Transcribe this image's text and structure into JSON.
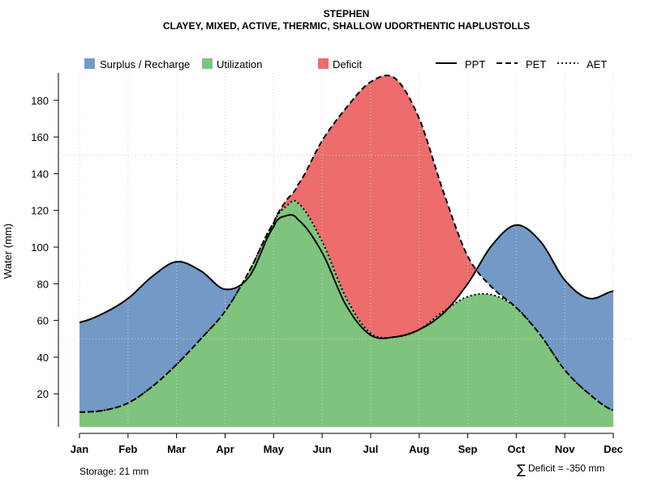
{
  "chart_data": {
    "type": "area",
    "title": "STEPHEN",
    "subtitle": "CLAYEY, MIXED, ACTIVE, THERMIC, SHALLOW UDORTHENTIC HAPLUSTOLLS",
    "xlabel": "",
    "ylabel": "Water (mm)",
    "categories": [
      "Jan",
      "Feb",
      "Mar",
      "Apr",
      "May",
      "Jun",
      "Jul",
      "Aug",
      "Sep",
      "Oct",
      "Nov",
      "Dec"
    ],
    "x": [
      1,
      1.5,
      2,
      2.5,
      3,
      3.5,
      4,
      4.5,
      5,
      5.25,
      5.5,
      6,
      6.5,
      7,
      7.5,
      8,
      8.5,
      9,
      9.5,
      10,
      10.5,
      11,
      11.5,
      12
    ],
    "series": [
      {
        "name": "PPT",
        "line": "solid",
        "values": [
          59,
          64,
          72,
          84,
          92,
          87,
          77,
          84,
          111,
          117,
          115,
          97,
          68,
          52,
          51,
          55,
          64,
          80,
          101,
          112,
          103,
          82,
          72,
          76
        ]
      },
      {
        "name": "PET",
        "line": "dashed",
        "values": [
          10,
          11,
          15,
          24,
          36,
          50,
          65,
          87,
          113,
          125,
          134,
          158,
          176,
          190,
          192,
          170,
          130,
          95,
          78,
          67,
          52,
          33,
          20,
          11
        ]
      },
      {
        "name": "AET",
        "line": "dotted",
        "values": [
          10,
          11,
          15,
          24,
          36,
          50,
          65,
          87,
          113,
          122,
          124,
          103,
          72,
          53,
          51,
          55,
          65,
          73,
          74,
          67,
          52,
          33,
          20,
          11
        ]
      }
    ],
    "ylim": [
      2,
      196
    ],
    "yticks": [
      20,
      40,
      60,
      80,
      100,
      120,
      140,
      160,
      180
    ],
    "legend": {
      "items": [
        "Surplus / Recharge",
        "Utilization",
        "Deficit",
        "PPT",
        "PET",
        "AET"
      ],
      "placement": "top"
    },
    "colors": {
      "surplus": "#7399c6",
      "utilization": "#7fc47c",
      "deficit": "#ed6c6c",
      "line": "#000000"
    },
    "annotations": {
      "storage": "Storage: 21 mm",
      "deficit_symbol": "∑",
      "deficit": "Deficit = -350 mm"
    }
  }
}
